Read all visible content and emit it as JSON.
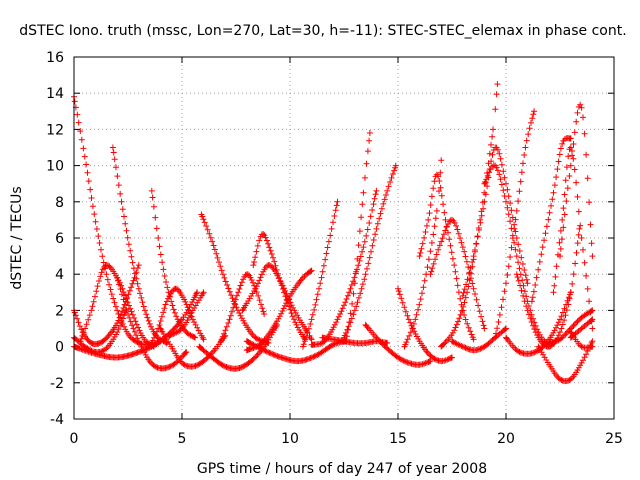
{
  "chart_data": {
    "type": "scatter",
    "title": "dSTEC Iono. truth (mssc, Lon=270, Lat=30, h=-11): STEC-STEC_elemax in phase cont.",
    "xlabel": "GPS time / hours of day 247 of year 2008",
    "ylabel": "dSTEC  / TECUs",
    "xlim": [
      0,
      25
    ],
    "ylim": [
      -4,
      16
    ],
    "x_ticks": [
      "0",
      "5",
      "10",
      "15",
      "20",
      "25"
    ],
    "y_ticks": [
      "-4",
      "-2",
      "0",
      "2",
      "4",
      "6",
      "8",
      "10",
      "12",
      "14",
      "16"
    ],
    "grid": true,
    "marker": "+",
    "series_color": "#ff0000",
    "arcs": [
      {
        "x": [
          0.0,
          0.5,
          1.0,
          1.5,
          2.0,
          2.5,
          3.0,
          3.5,
          4.0
        ],
        "y": [
          13.8,
          10.5,
          6.9,
          4.0,
          2.0,
          0.7,
          0.2,
          0.1,
          0.3
        ]
      },
      {
        "x": [
          0.0,
          0.5,
          1.0,
          1.5,
          2.0,
          2.4
        ],
        "y": [
          0.5,
          0.0,
          -0.3,
          -0.1,
          0.8,
          2.0
        ]
      },
      {
        "x": [
          0.0,
          0.4,
          0.8,
          1.2,
          1.6,
          2.0,
          2.4,
          2.8,
          3.0
        ],
        "y": [
          2.0,
          0.8,
          0.2,
          0.2,
          0.6,
          1.3,
          2.5,
          3.8,
          4.5
        ]
      },
      {
        "x": [
          0.0,
          1.0,
          2.0,
          3.0,
          4.0,
          5.0,
          5.7
        ],
        "y": [
          0.0,
          -0.4,
          -0.6,
          -0.3,
          0.3,
          1.5,
          3.0
        ]
      },
      {
        "x": [
          0.3,
          0.8,
          1.4,
          2.0,
          2.6,
          3.2,
          3.7
        ],
        "y": [
          0.3,
          2.0,
          4.4,
          3.8,
          2.1,
          0.5,
          0.0
        ]
      },
      {
        "x": [
          1.8,
          2.2,
          2.6,
          3.0,
          3.4,
          3.8,
          4.3
        ],
        "y": [
          11.0,
          8.0,
          5.3,
          3.2,
          1.6,
          0.6,
          0.2
        ]
      },
      {
        "x": [
          2.0,
          2.5,
          3.0,
          3.5,
          4.0,
          4.6,
          5.2
        ],
        "y": [
          3.8,
          1.8,
          0.3,
          -0.8,
          -1.2,
          -1.0,
          -0.3
        ]
      },
      {
        "x": [
          3.6,
          3.9,
          4.2,
          4.5,
          4.8,
          5.2,
          5.6
        ],
        "y": [
          8.6,
          6.0,
          3.9,
          2.5,
          1.5,
          0.8,
          0.5
        ]
      },
      {
        "x": [
          3.5,
          3.9,
          4.3,
          4.7,
          5.1,
          5.5,
          6.0
        ],
        "y": [
          0.0,
          1.0,
          2.5,
          3.2,
          2.6,
          1.5,
          0.4
        ]
      },
      {
        "x": [
          4.0,
          4.5,
          5.0,
          5.5,
          6.0,
          6.5,
          7.0
        ],
        "y": [
          1.0,
          0.0,
          -0.9,
          -1.1,
          -0.8,
          -0.2,
          0.6
        ]
      },
      {
        "x": [
          4.4,
          5.0,
          5.5,
          6.0
        ],
        "y": [
          0.6,
          1.0,
          2.0,
          3.0
        ]
      },
      {
        "x": [
          5.9,
          6.4,
          6.9,
          7.4,
          7.9,
          8.4,
          9.0
        ],
        "y": [
          7.3,
          5.8,
          4.0,
          2.5,
          1.3,
          0.5,
          0.2
        ]
      },
      {
        "x": [
          5.8,
          6.4,
          7.0,
          7.6,
          8.2,
          8.8,
          9.4
        ],
        "y": [
          0.0,
          -0.6,
          -1.1,
          -1.2,
          -0.8,
          0.0,
          1.2
        ]
      },
      {
        "x": [
          6.8,
          7.2,
          7.6,
          8.0,
          8.4,
          8.8
        ],
        "y": [
          0.3,
          1.5,
          3.0,
          4.0,
          3.2,
          1.8
        ]
      },
      {
        "x": [
          8.0,
          8.8,
          9.6,
          10.4,
          11.2,
          12.0,
          12.6
        ],
        "y": [
          0.3,
          -0.2,
          -0.6,
          -0.8,
          -0.5,
          0.1,
          0.3
        ]
      },
      {
        "x": [
          8.3,
          8.7,
          9.1,
          9.5,
          9.9,
          10.3,
          10.7
        ],
        "y": [
          4.5,
          6.2,
          5.3,
          3.8,
          2.4,
          1.2,
          0.4
        ]
      },
      {
        "x": [
          7.8,
          8.4,
          9.0,
          9.6,
          10.2,
          10.8,
          11.0
        ],
        "y": [
          2.0,
          3.2,
          4.5,
          3.5,
          2.0,
          0.8,
          0.4
        ]
      },
      {
        "x": [
          8.0,
          8.7,
          9.4,
          10.0,
          10.6,
          11.0
        ],
        "y": [
          -0.2,
          0.2,
          1.4,
          2.8,
          3.8,
          4.2
        ]
      },
      {
        "x": [
          10.6,
          11.0,
          11.4,
          11.8,
          12.2
        ],
        "y": [
          0.0,
          1.5,
          3.5,
          5.8,
          8.0
        ]
      },
      {
        "x": [
          12.6,
          13.0,
          13.4,
          13.7
        ],
        "y": [
          0.3,
          3.5,
          8.5,
          11.8
        ]
      },
      {
        "x": [
          11.0,
          11.6,
          12.2,
          12.8,
          13.4,
          14.0
        ],
        "y": [
          0.1,
          0.3,
          1.5,
          3.2,
          5.5,
          8.6
        ]
      },
      {
        "x": [
          11.5,
          12.0,
          12.5,
          13.0,
          13.5,
          14.0,
          14.5
        ],
        "y": [
          0.5,
          0.4,
          0.3,
          0.2,
          0.2,
          0.3,
          0.2
        ]
      },
      {
        "x": [
          12.5,
          13.0,
          13.5,
          14.0,
          14.5,
          14.9
        ],
        "y": [
          0.5,
          2.0,
          4.0,
          6.5,
          8.6,
          10.0
        ]
      },
      {
        "x": [
          13.5,
          14.0,
          14.5,
          15.0,
          15.5,
          16.0,
          16.5
        ],
        "y": [
          1.2,
          0.5,
          -0.1,
          -0.6,
          -0.9,
          -1.0,
          -0.8
        ]
      },
      {
        "x": [
          15.0,
          15.5,
          16.0,
          16.5,
          17.0,
          17.5
        ],
        "y": [
          3.2,
          1.5,
          0.3,
          -0.5,
          -0.8,
          -0.6
        ]
      },
      {
        "x": [
          15.3,
          15.8,
          16.3,
          16.8,
          17.0
        ],
        "y": [
          0.0,
          1.5,
          4.0,
          7.5,
          10.3
        ]
      },
      {
        "x": [
          16.0,
          16.4,
          16.8,
          17.2,
          17.6,
          18.0,
          18.5
        ],
        "y": [
          5.0,
          7.0,
          9.5,
          7.0,
          4.5,
          2.0,
          0.4
        ]
      },
      {
        "x": [
          16.5,
          17.0,
          17.5,
          18.0,
          18.5,
          19.0
        ],
        "y": [
          4.0,
          5.8,
          7.0,
          5.5,
          3.2,
          1.0
        ]
      },
      {
        "x": [
          17.0,
          17.6,
          18.2,
          18.8,
          19.4,
          19.6
        ],
        "y": [
          0.0,
          0.9,
          3.0,
          7.0,
          12.0,
          14.5
        ]
      },
      {
        "x": [
          17.5,
          18.0,
          18.5,
          19.0,
          19.5,
          20.0
        ],
        "y": [
          0.3,
          0.0,
          -0.2,
          0.0,
          0.5,
          1.0
        ]
      },
      {
        "x": [
          18.0,
          18.5,
          19.0,
          19.5,
          20.0,
          20.5,
          21.0
        ],
        "y": [
          2.8,
          5.0,
          8.0,
          11.0,
          9.0,
          6.0,
          3.5
        ]
      },
      {
        "x": [
          19.0,
          19.5,
          20.0,
          20.5,
          21.0,
          21.5,
          22.0
        ],
        "y": [
          9.0,
          10.0,
          8.0,
          5.0,
          2.5,
          0.8,
          0.0
        ]
      },
      {
        "x": [
          19.5,
          20.0,
          20.5,
          20.9,
          21.3
        ],
        "y": [
          0.5,
          3.5,
          7.5,
          11.0,
          13.0
        ]
      },
      {
        "x": [
          20.0,
          20.5,
          21.0,
          21.5,
          22.0,
          22.5,
          23.0
        ],
        "y": [
          0.5,
          -0.2,
          -0.4,
          -0.2,
          0.4,
          1.5,
          3.0
        ]
      },
      {
        "x": [
          20.5,
          21.0,
          21.5,
          22.0,
          22.5,
          23.0,
          23.4
        ],
        "y": [
          4.0,
          2.0,
          0.5,
          0.0,
          0.8,
          3.0,
          6.5
        ]
      },
      {
        "x": [
          21.5,
          22.0,
          22.5,
          23.0,
          23.5,
          24.0
        ],
        "y": [
          0.0,
          -1.0,
          -1.8,
          -1.8,
          -0.9,
          0.3
        ]
      },
      {
        "x": [
          21.2,
          21.7,
          22.2,
          22.6,
          23.0
        ],
        "y": [
          2.5,
          5.5,
          8.5,
          11.2,
          11.5
        ]
      },
      {
        "x": [
          22.2,
          22.6,
          23.0,
          23.5,
          24.0
        ],
        "y": [
          3.0,
          7.0,
          11.0,
          6.0,
          1.0
        ]
      },
      {
        "x": [
          22.5,
          23.0,
          23.5,
          24.0
        ],
        "y": [
          5.0,
          10.0,
          13.2,
          5.0
        ]
      },
      {
        "x": [
          23.0,
          23.5,
          24.0
        ],
        "y": [
          0.8,
          0.0,
          0.0
        ]
      },
      {
        "x": [
          22.0,
          22.5,
          23.0,
          23.5,
          24.0
        ],
        "y": [
          0.2,
          0.4,
          1.0,
          1.6,
          2.0
        ]
      },
      {
        "x": [
          23.0,
          23.5,
          24.0
        ],
        "y": [
          0.5,
          1.0,
          1.5
        ]
      }
    ]
  }
}
